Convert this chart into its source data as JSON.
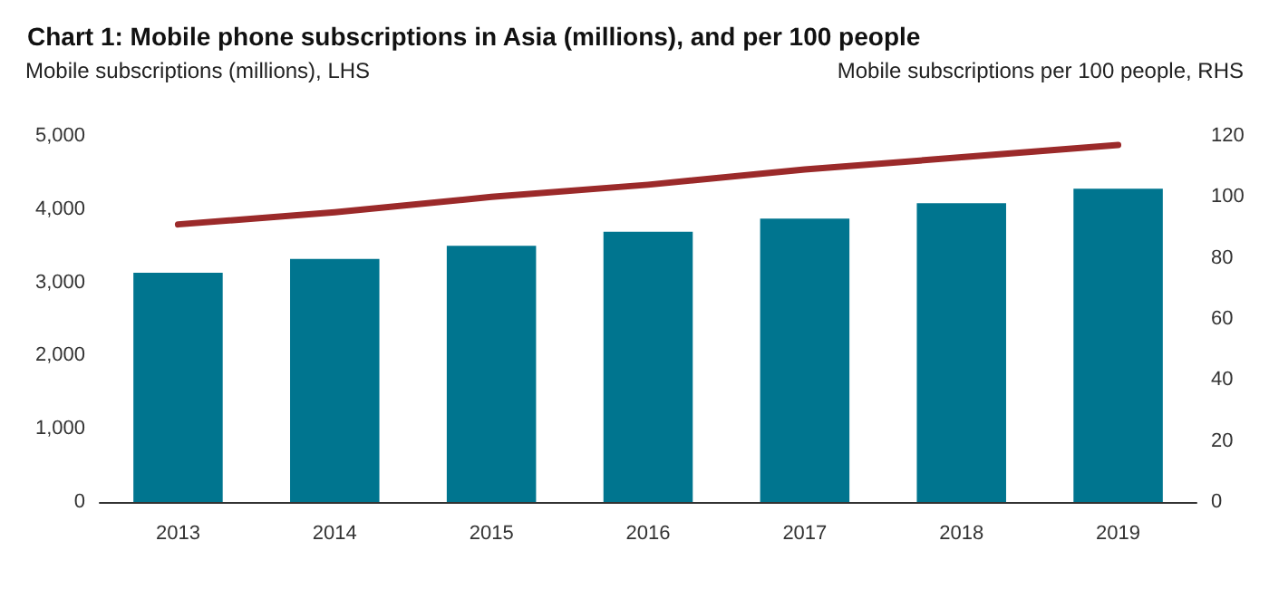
{
  "chart_data": {
    "type": "bar",
    "title": "Chart 1: Mobile phone subscriptions in Asia (millions), and per 100 people",
    "ylabel": "Mobile subscriptions (millions), LHS",
    "y2label": "Mobile subscriptions per 100 people, RHS",
    "categories": [
      "2013",
      "2014",
      "2015",
      "2016",
      "2017",
      "2018",
      "2019"
    ],
    "series": [
      {
        "color": "#00758f",
        "values": [
          3130,
          3320,
          3500,
          3690,
          3870,
          4080,
          4280
        ]
      },
      {
        "type": "line",
        "axis": "y2",
        "color": "#9b2a2a",
        "marker": "none",
        "values": [
          91,
          95,
          100,
          104,
          109,
          113,
          117
        ]
      }
    ],
    "ylim": [
      0,
      5000
    ],
    "yticks": [
      0,
      {
        "value": 1000,
        "label": "1,000"
      },
      {
        "value": 2000,
        "label": "2,000"
      },
      {
        "value": 3000,
        "label": "3,000"
      },
      {
        "value": 4000,
        "label": "4,000"
      },
      {
        "value": 5000,
        "label": "5,000"
      }
    ],
    "y2lim": [
      0,
      120
    ],
    "y2ticks": [
      0,
      20,
      40,
      60,
      80,
      100,
      120
    ],
    "grid": false
  }
}
